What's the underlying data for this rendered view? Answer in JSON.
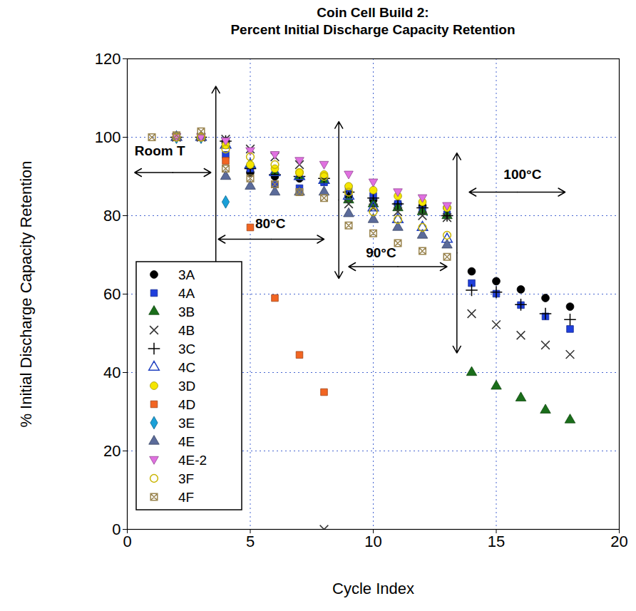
{
  "chart_data": {
    "type": "scatter",
    "title": "Coin Cell Build 2:\nPercent Initial Discharge Capacity Retention",
    "x_label": "Cycle Index",
    "y_label": "% Initial Discharge Capacity Retention",
    "xlim": [
      0,
      20
    ],
    "xticks": [
      0,
      5,
      10,
      15,
      20
    ],
    "ylim": [
      0,
      120
    ],
    "yticks": [
      0,
      20,
      40,
      60,
      80,
      100,
      120
    ],
    "grid": true,
    "legend": "lower left",
    "series": [
      {
        "name": "3A",
        "color": "#000000",
        "marker": "circle",
        "x": [
          2,
          3,
          4,
          5,
          6,
          7,
          8,
          9,
          10,
          11,
          12,
          13,
          14,
          15,
          16,
          17,
          18
        ],
        "values": [
          100,
          100,
          99,
          91,
          90,
          89.5,
          89,
          85,
          84,
          83,
          82.5,
          82,
          65.8,
          63.3,
          61.2,
          59,
          56.8
        ]
      },
      {
        "name": "4A",
        "color": "#1f3fdc",
        "marker": "square",
        "x": [
          2,
          3,
          4,
          5,
          6,
          7,
          8,
          9,
          10,
          11,
          12,
          13,
          14,
          15,
          16,
          17,
          18
        ],
        "values": [
          100,
          100,
          95.5,
          92,
          88,
          87,
          88.5,
          87,
          85,
          83,
          81.5,
          80.3,
          62.8,
          60.1,
          57.2,
          54.3,
          51.1
        ]
      },
      {
        "name": "3B",
        "color": "#1a6e1a",
        "marker": "triangle",
        "x": [
          2,
          3,
          4,
          5,
          6,
          7,
          8,
          9,
          10,
          11,
          12,
          13,
          14,
          15,
          16,
          17,
          18
        ],
        "values": [
          100,
          100,
          98,
          93,
          91,
          90,
          89,
          84,
          83,
          82,
          81,
          80,
          40,
          36.5,
          33.5,
          30.4,
          27.9
        ]
      },
      {
        "name": "4B",
        "color": "#333333",
        "marker": "times",
        "x": [
          2,
          3,
          4,
          5,
          6,
          7,
          8,
          9,
          10,
          11,
          12,
          13,
          14,
          15,
          16,
          17,
          18
        ],
        "values": [
          100,
          100,
          99.5,
          97,
          95,
          93,
          0,
          83,
          82,
          81,
          80,
          79.5,
          55,
          52.2,
          49.5,
          47,
          44.6
        ]
      },
      {
        "name": "3C",
        "color": "#000000",
        "marker": "plus",
        "x": [
          2,
          3,
          4,
          5,
          6,
          7,
          8,
          9,
          10,
          11,
          12,
          13,
          14,
          15,
          16,
          17,
          18
        ],
        "values": [
          100,
          100,
          99,
          92,
          90.5,
          90,
          89.5,
          86,
          84.5,
          83,
          82,
          80,
          61,
          60.5,
          57.3,
          55,
          53.5
        ]
      },
      {
        "name": "4C",
        "color": "#2040c0",
        "marker": "triangle-open",
        "x": [
          2,
          3,
          4,
          5,
          6,
          7,
          8,
          9,
          10,
          11,
          12,
          13
        ],
        "values": [
          100,
          100,
          98,
          93,
          91,
          90,
          89,
          85,
          82,
          79,
          77,
          74
        ]
      },
      {
        "name": "3D",
        "color": "#f5e600",
        "marker": "circle",
        "x": [
          2,
          3,
          4,
          5,
          6,
          7,
          8,
          9,
          10,
          11,
          12,
          13
        ],
        "values": [
          100,
          100,
          98,
          93,
          92,
          91,
          90.5,
          87.5,
          86.5,
          85,
          83.5,
          82
        ]
      },
      {
        "name": "4D",
        "color": "#f26522",
        "marker": "square",
        "x": [
          2,
          3,
          4,
          5,
          6,
          7,
          8
        ],
        "values": [
          100,
          100,
          94,
          77,
          59,
          44.5,
          35
        ]
      },
      {
        "name": "3E",
        "color": "#1aa0d8",
        "marker": "diamond",
        "x": [
          2,
          3,
          4
        ],
        "values": [
          100,
          100,
          83.5
        ]
      },
      {
        "name": "4E",
        "color": "#5b6b9a",
        "marker": "triangle",
        "x": [
          2,
          3,
          4,
          5,
          6,
          7,
          8,
          9,
          10,
          11,
          12,
          13
        ],
        "values": [
          100,
          100,
          90,
          87.5,
          86,
          86,
          86,
          80.5,
          79,
          77,
          75,
          72.5
        ]
      },
      {
        "name": "4E-2",
        "color": "#e070e0",
        "marker": "triangle-down",
        "x": [
          2,
          3,
          4,
          5,
          6,
          7,
          8,
          9,
          10,
          11,
          12,
          13
        ],
        "values": [
          100,
          100,
          99,
          96.5,
          95.5,
          94,
          93,
          90.5,
          88.5,
          86,
          84.5,
          82.5
        ]
      },
      {
        "name": "3F",
        "color": "#c8b400",
        "marker": "circle-open",
        "x": [
          2,
          3,
          4,
          5,
          6,
          7,
          8,
          9,
          10,
          11,
          12,
          13
        ],
        "values": [
          100,
          100,
          97,
          95,
          93,
          91,
          90,
          86,
          81,
          79,
          77,
          75
        ]
      },
      {
        "name": "4F",
        "color": "#9a8550",
        "marker": "square-x",
        "x": [
          1,
          2,
          3,
          4,
          5,
          6,
          7,
          8,
          9,
          10,
          11,
          12,
          13
        ],
        "values": [
          100,
          100.5,
          101.5,
          92,
          89.5,
          88,
          86,
          84.5,
          77.5,
          75.5,
          73,
          71,
          69.5
        ]
      }
    ],
    "annotations": [
      {
        "text": "Room T",
        "x": 0.3,
        "y": 96.5
      },
      {
        "text": "80°C",
        "x": 5.2,
        "y": 78
      },
      {
        "text": "90°C",
        "x": 9.7,
        "y": 70.5
      },
      {
        "text": "100°C",
        "x": 15.3,
        "y": 90.5
      }
    ],
    "arrows": [
      {
        "x1": 0.3,
        "y1": 91,
        "x2": 3.4,
        "y2": 91
      },
      {
        "x1": 3.6,
        "y1": 7.5,
        "x2": 3.6,
        "y2": 113
      },
      {
        "x1": 3.7,
        "y1": 74,
        "x2": 8.0,
        "y2": 74
      },
      {
        "x1": 8.6,
        "y1": 64,
        "x2": 8.6,
        "y2": 104
      },
      {
        "x1": 9.0,
        "y1": 67,
        "x2": 13.0,
        "y2": 67
      },
      {
        "x1": 13.4,
        "y1": 45,
        "x2": 13.4,
        "y2": 96
      },
      {
        "x1": 13.9,
        "y1": 86,
        "x2": 17.8,
        "y2": 86
      }
    ]
  }
}
